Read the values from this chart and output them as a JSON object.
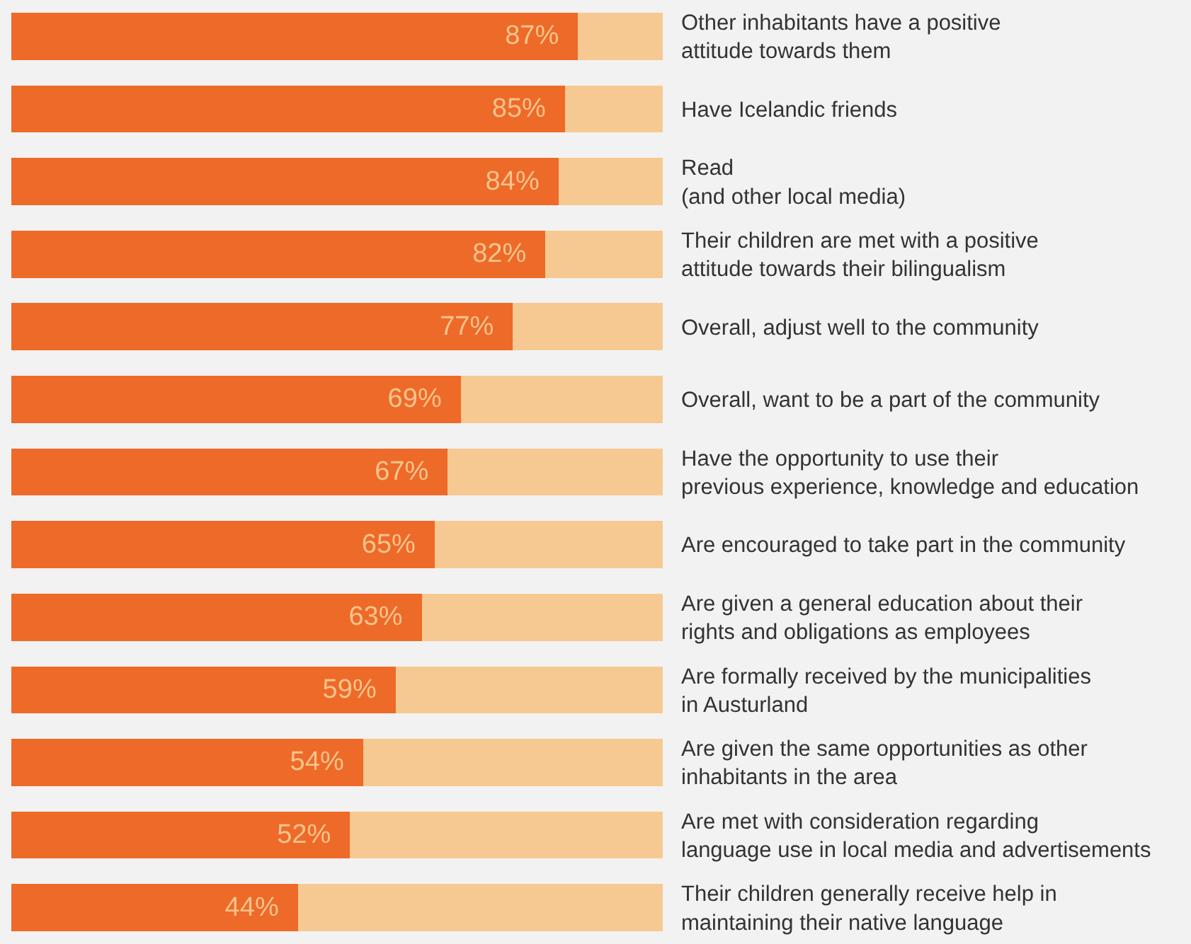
{
  "chart_data": {
    "type": "bar",
    "orientation": "horizontal",
    "stacked": true,
    "tick_labels": "y",
    "xlim": [
      0,
      100
    ],
    "categories": [
      "Other inhabitants have a positive\nattitude towards them",
      "Have Icelandic friends",
      "Read\n(and other local media)",
      "Their children are met with a positive\nattitude towards their bilingualism",
      "Overall, adjust well to the community",
      "Overall, want to be a part of the community",
      "Have the opportunity to use their\nprevious experience, knowledge and education",
      "Are encouraged to take part in the community",
      "Are given a general education about their\nrights and obligations as employees",
      "Are formally received by the municipalities\nin Austurland",
      "Are given the same opportunities as other\ninhabitants in the area",
      "Are met with consideration regarding\nlanguage use in local media and advertisements",
      "Their children generally receive help in\nmaintaining their native language"
    ],
    "series": [
      {
        "color": "#ee6a28",
        "values": [
          87,
          85,
          84,
          82,
          77,
          69,
          67,
          65,
          63,
          59,
          54,
          52,
          44
        ],
        "value_labels": [
          "87%",
          "85%",
          "84%",
          "82%",
          "77%",
          "69%",
          "67%",
          "65%",
          "63%",
          "59%",
          "54%",
          "52%",
          "44%"
        ]
      },
      {
        "color": "#f7c992",
        "values": [
          13,
          15,
          16,
          18,
          23,
          31,
          33,
          35,
          37,
          41,
          46,
          48,
          56
        ]
      }
    ]
  }
}
